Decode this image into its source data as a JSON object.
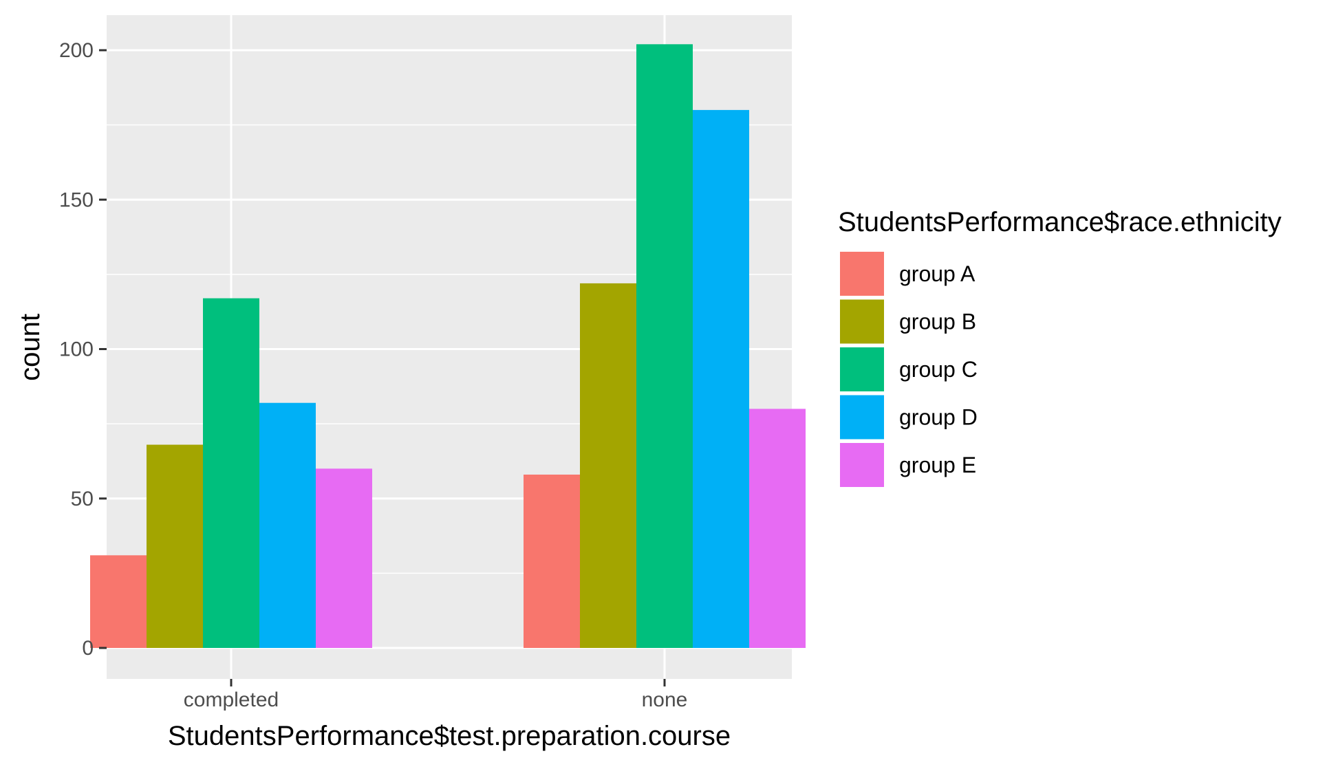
{
  "chart_data": {
    "type": "bar",
    "xlabel": "StudentsPerformance$test.preparation.course",
    "ylabel": "count",
    "categories": [
      "completed",
      "none"
    ],
    "ylim": [
      0,
      212
    ],
    "yticks": [
      0,
      50,
      100,
      150,
      200
    ],
    "grid": true,
    "legend": {
      "title": "StudentsPerformance$race.ethnicity",
      "position": "right"
    },
    "series": [
      {
        "name": "group A",
        "color": "#F8766D",
        "values": [
          31,
          58
        ]
      },
      {
        "name": "group B",
        "color": "#A3A500",
        "values": [
          68,
          122
        ]
      },
      {
        "name": "group C",
        "color": "#00BF7D",
        "values": [
          117,
          202
        ]
      },
      {
        "name": "group D",
        "color": "#00B0F6",
        "values": [
          82,
          180
        ]
      },
      {
        "name": "group E",
        "color": "#E76BF3",
        "values": [
          60,
          80
        ]
      }
    ]
  }
}
